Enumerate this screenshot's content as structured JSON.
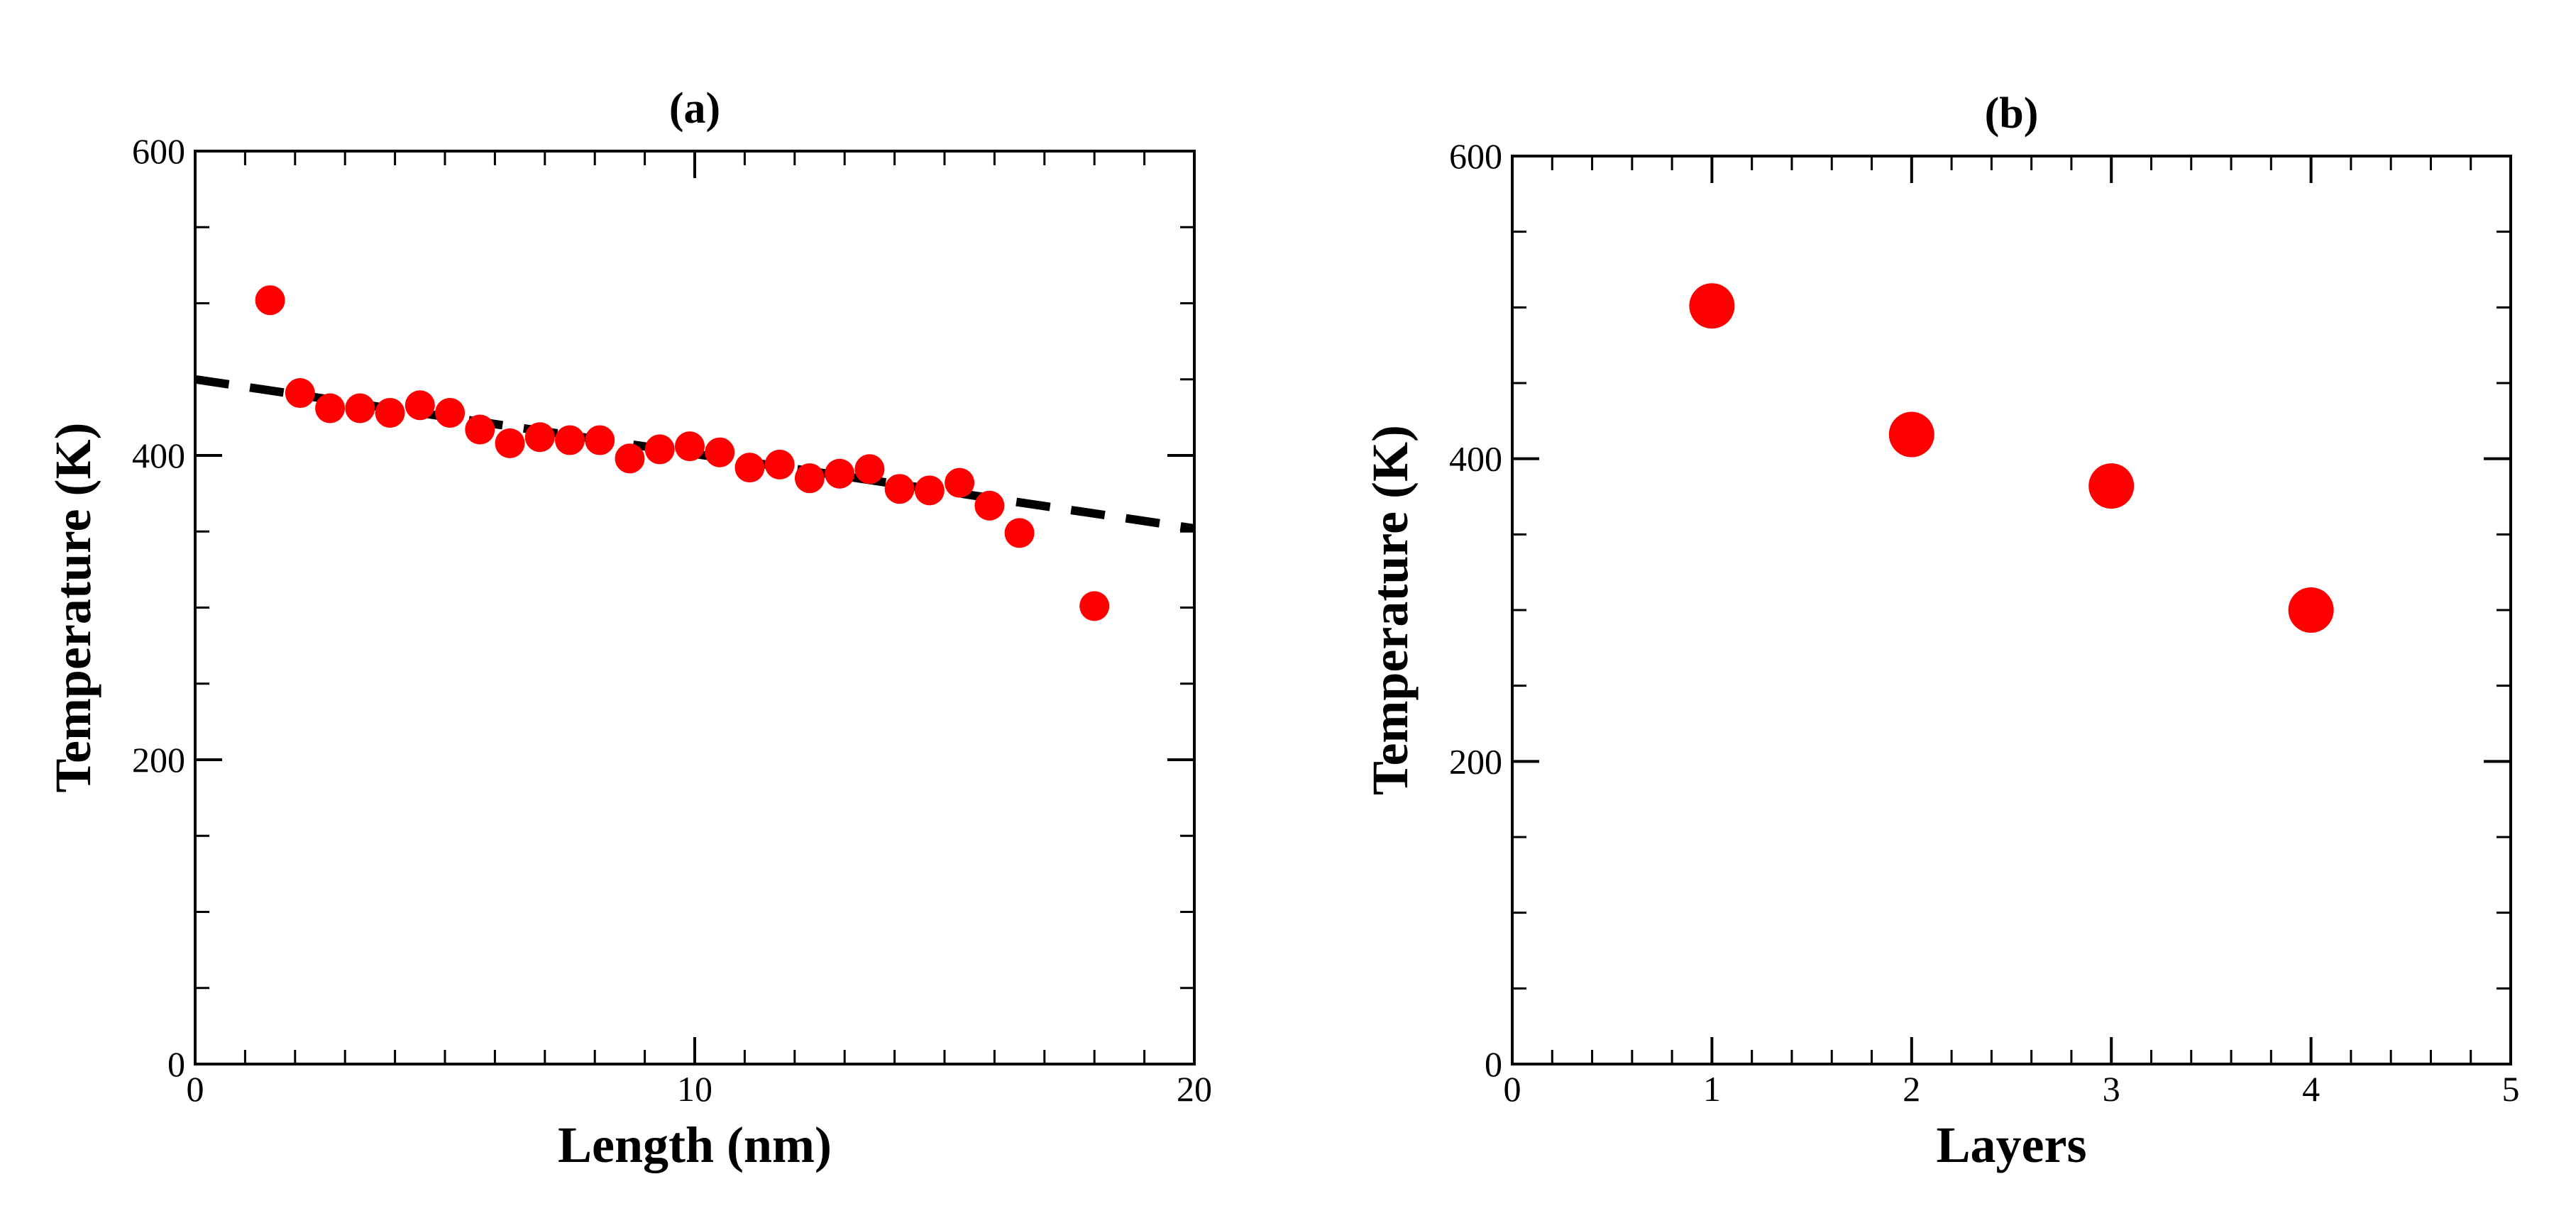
{
  "chart_data": [
    {
      "type": "scatter",
      "title": "(a)",
      "xlabel": "Length (nm)",
      "ylabel": "Temperature (K)",
      "xlim": [
        0,
        20
      ],
      "ylim": [
        0,
        600
      ],
      "xticks": [
        0,
        10,
        20
      ],
      "yticks": [
        0,
        200,
        400,
        600
      ],
      "x_tick_labels": [
        "0",
        "10",
        "20"
      ],
      "y_tick_labels": [
        "0",
        "200",
        "400",
        "600"
      ],
      "x_minor_step": 1,
      "y_minor_step": 50,
      "grid": false,
      "marker_color": "#ff0000",
      "line_color": "#000000",
      "series": [
        {
          "name": "temperature",
          "x": [
            1.5,
            2.1,
            2.7,
            3.3,
            3.9,
            4.5,
            5.1,
            5.7,
            6.3,
            6.9,
            7.5,
            8.1,
            8.7,
            9.3,
            9.9,
            10.5,
            11.1,
            11.7,
            12.3,
            12.9,
            13.5,
            14.1,
            14.7,
            15.3,
            15.9,
            16.5,
            18.0
          ],
          "y": [
            502,
            441,
            431,
            431,
            428,
            433,
            428,
            417,
            408,
            412,
            410,
            410,
            398,
            404,
            406,
            402,
            392,
            394,
            385,
            388,
            391,
            378,
            377,
            382,
            367,
            349,
            301
          ]
        },
        {
          "name": "linear-fit",
          "style": "dashed",
          "x": [
            0,
            20
          ],
          "y": [
            450,
            352
          ]
        }
      ]
    },
    {
      "type": "scatter",
      "title": "(b)",
      "xlabel": "Layers",
      "ylabel": "Temperature (K)",
      "xlim": [
        0,
        5
      ],
      "ylim": [
        0,
        600
      ],
      "xticks": [
        0,
        1,
        2,
        3,
        4,
        5
      ],
      "yticks": [
        0,
        200,
        400,
        600
      ],
      "x_tick_labels": [
        "0",
        "1",
        "2",
        "3",
        "4",
        "5"
      ],
      "y_tick_labels": [
        "0",
        "200",
        "400",
        "600"
      ],
      "x_minor_step": 0.2,
      "y_minor_step": 50,
      "grid": false,
      "marker_color": "#ff0000",
      "series": [
        {
          "name": "temperature",
          "x": [
            1,
            2,
            3,
            4
          ],
          "y": [
            501,
            416,
            382,
            300
          ]
        }
      ]
    }
  ]
}
